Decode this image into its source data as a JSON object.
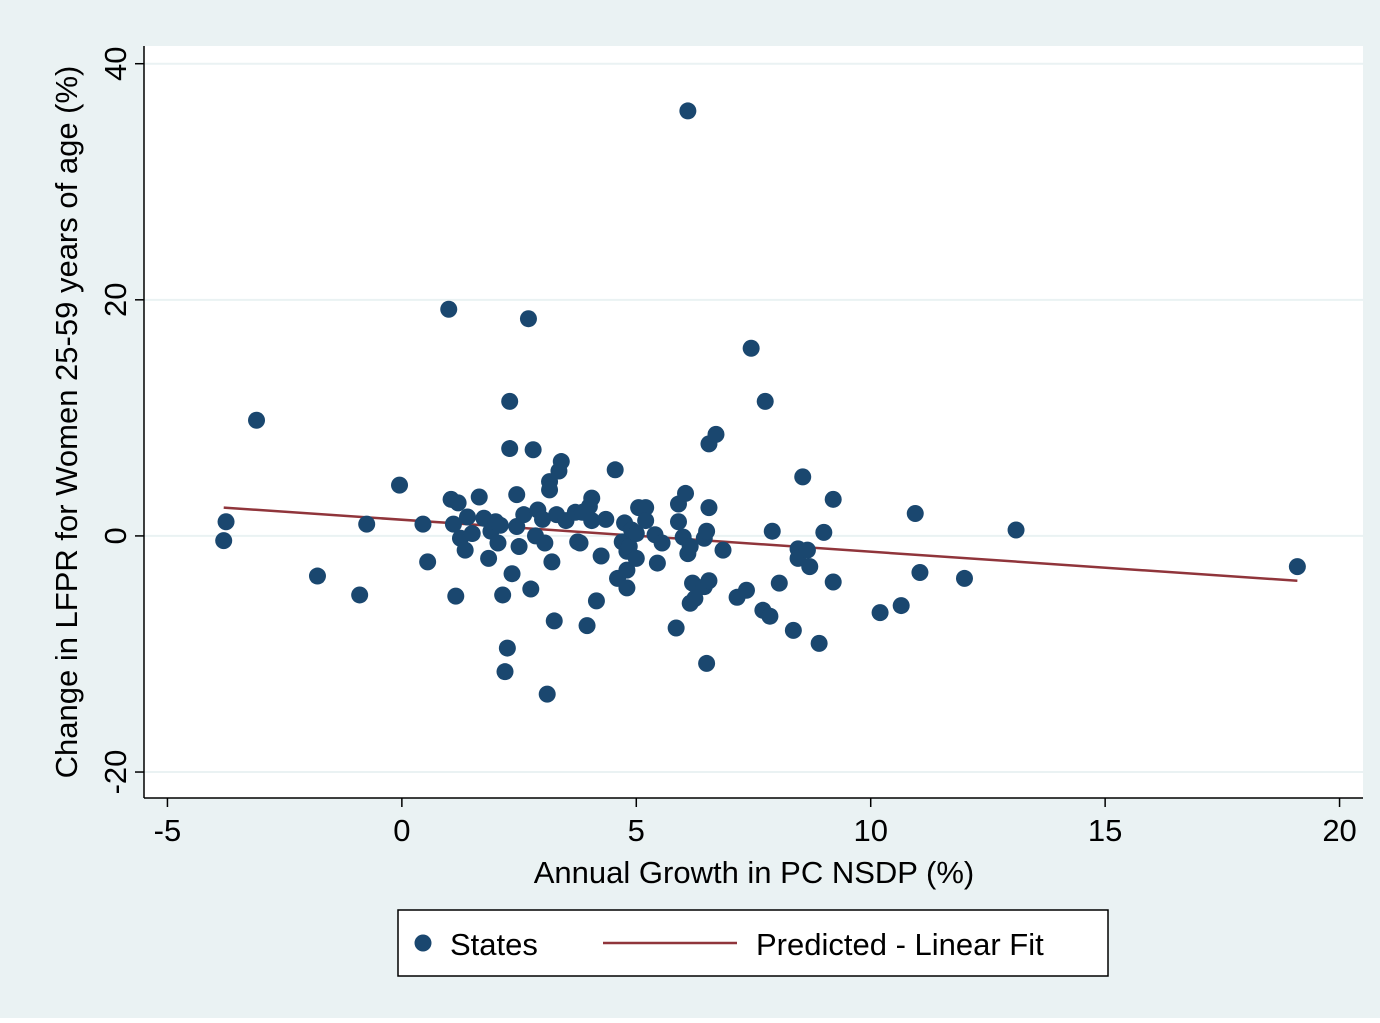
{
  "colors": {
    "page_background": "#eaf2f3",
    "plot_background": "#ffffff",
    "gridline": "#eaf2f3",
    "marker": "#1a476f",
    "fit_line": "#90353b",
    "axis": "#000000"
  },
  "chart_data": {
    "type": "scatter",
    "xlabel": "Annual Growth in PC NSDP (%)",
    "ylabel": "Change in LFPR for Women 25-59 years of age (%)",
    "xlim": [
      -5.5,
      20.5
    ],
    "ylim": [
      -22.2,
      41.5
    ],
    "xticks": [
      -5,
      0,
      5,
      10,
      15,
      20
    ],
    "xtick_labels": [
      "-5",
      "0",
      "5",
      "10",
      "15",
      "20"
    ],
    "yticks": [
      -20,
      0,
      20,
      40
    ],
    "ytick_labels": [
      "-20",
      "0",
      "20",
      "40"
    ],
    "grid": "horizontal",
    "legend_position": "bottom",
    "series": [
      {
        "name": "States",
        "kind": "scatter",
        "points": [
          [
            -3.8,
            -0.4
          ],
          [
            -3.75,
            1.2
          ],
          [
            -3.1,
            9.8
          ],
          [
            -1.8,
            -3.4
          ],
          [
            -0.9,
            -5.0
          ],
          [
            -0.75,
            1.0
          ],
          [
            -0.05,
            4.3
          ],
          [
            0.45,
            1.0
          ],
          [
            0.55,
            -2.2
          ],
          [
            1.0,
            19.2
          ],
          [
            1.05,
            3.1
          ],
          [
            1.2,
            2.8
          ],
          [
            1.15,
            -5.1
          ],
          [
            1.1,
            1.0
          ],
          [
            1.25,
            -0.2
          ],
          [
            1.35,
            -1.2
          ],
          [
            1.4,
            1.6
          ],
          [
            1.5,
            0.2
          ],
          [
            1.65,
            3.3
          ],
          [
            1.75,
            1.5
          ],
          [
            1.85,
            -1.9
          ],
          [
            1.9,
            0.4
          ],
          [
            2.0,
            1.2
          ],
          [
            2.05,
            -0.6
          ],
          [
            2.1,
            0.9
          ],
          [
            2.15,
            -5.0
          ],
          [
            2.2,
            -11.5
          ],
          [
            2.25,
            -9.5
          ],
          [
            2.3,
            11.4
          ],
          [
            2.35,
            -3.2
          ],
          [
            2.3,
            7.4
          ],
          [
            2.45,
            3.5
          ],
          [
            2.45,
            0.8
          ],
          [
            2.5,
            -0.9
          ],
          [
            2.6,
            1.8
          ],
          [
            2.7,
            18.4
          ],
          [
            2.75,
            -4.5
          ],
          [
            2.8,
            7.3
          ],
          [
            2.85,
            0.0
          ],
          [
            2.9,
            2.2
          ],
          [
            3.0,
            1.4
          ],
          [
            3.05,
            -0.6
          ],
          [
            3.1,
            -13.4
          ],
          [
            3.15,
            4.6
          ],
          [
            3.15,
            3.9
          ],
          [
            3.2,
            -2.2
          ],
          [
            3.25,
            -7.2
          ],
          [
            3.3,
            1.8
          ],
          [
            3.35,
            5.5
          ],
          [
            3.4,
            6.3
          ],
          [
            3.5,
            1.3
          ],
          [
            3.7,
            2.0
          ],
          [
            3.75,
            -0.5
          ],
          [
            3.8,
            -0.6
          ],
          [
            3.85,
            2.0
          ],
          [
            3.95,
            -7.6
          ],
          [
            4.0,
            2.5
          ],
          [
            4.05,
            1.3
          ],
          [
            4.05,
            3.2
          ],
          [
            4.15,
            -5.5
          ],
          [
            4.25,
            -1.7
          ],
          [
            4.35,
            1.4
          ],
          [
            4.55,
            5.6
          ],
          [
            4.6,
            -3.6
          ],
          [
            4.7,
            -0.5
          ],
          [
            4.75,
            1.1
          ],
          [
            4.8,
            -2.9
          ],
          [
            4.8,
            -1.3
          ],
          [
            4.8,
            -4.4
          ],
          [
            4.85,
            -0.9
          ],
          [
            4.9,
            0.5
          ],
          [
            5.0,
            -1.9
          ],
          [
            5.0,
            0.2
          ],
          [
            5.05,
            2.4
          ],
          [
            5.2,
            2.4
          ],
          [
            5.2,
            1.3
          ],
          [
            5.4,
            0.1
          ],
          [
            5.45,
            -2.3
          ],
          [
            5.55,
            -0.6
          ],
          [
            5.85,
            -7.8
          ],
          [
            5.9,
            2.7
          ],
          [
            5.9,
            1.2
          ],
          [
            6.0,
            -0.1
          ],
          [
            6.05,
            3.6
          ],
          [
            6.1,
            36.0
          ],
          [
            6.1,
            -1.5
          ],
          [
            6.15,
            -0.9
          ],
          [
            6.15,
            -5.7
          ],
          [
            6.2,
            -4.0
          ],
          [
            6.25,
            -5.3
          ],
          [
            6.45,
            -0.2
          ],
          [
            6.45,
            -4.3
          ],
          [
            6.5,
            -10.8
          ],
          [
            6.5,
            0.4
          ],
          [
            6.55,
            -3.8
          ],
          [
            6.55,
            2.4
          ],
          [
            6.55,
            7.8
          ],
          [
            6.7,
            8.6
          ],
          [
            6.85,
            -1.2
          ],
          [
            7.15,
            -5.2
          ],
          [
            7.35,
            -4.6
          ],
          [
            7.45,
            15.9
          ],
          [
            7.7,
            -6.3
          ],
          [
            7.75,
            11.4
          ],
          [
            7.85,
            -6.8
          ],
          [
            7.9,
            0.4
          ],
          [
            8.05,
            -4.0
          ],
          [
            8.35,
            -8.0
          ],
          [
            8.45,
            -1.1
          ],
          [
            8.45,
            -1.9
          ],
          [
            8.55,
            5.0
          ],
          [
            8.65,
            -1.2
          ],
          [
            8.7,
            -2.6
          ],
          [
            8.9,
            -9.1
          ],
          [
            9.0,
            0.3
          ],
          [
            9.2,
            3.1
          ],
          [
            9.2,
            -3.9
          ],
          [
            10.2,
            -6.5
          ],
          [
            10.65,
            -5.9
          ],
          [
            10.95,
            1.9
          ],
          [
            11.05,
            -3.1
          ],
          [
            12.0,
            -3.6
          ],
          [
            13.1,
            0.5
          ],
          [
            19.1,
            -2.6
          ]
        ]
      },
      {
        "name": "Predicted - Linear Fit",
        "kind": "line",
        "points": [
          [
            -3.8,
            2.4
          ],
          [
            19.1,
            -3.8
          ]
        ]
      }
    ]
  }
}
